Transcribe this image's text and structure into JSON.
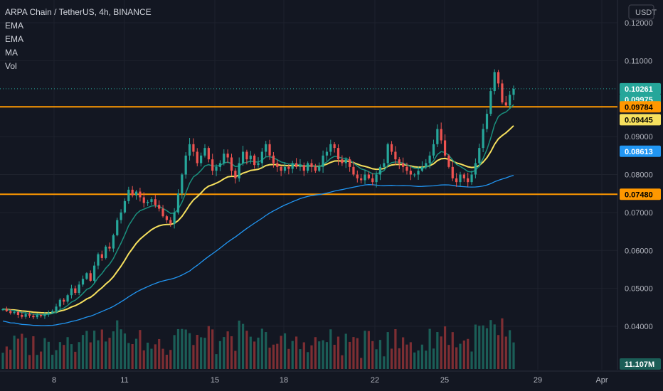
{
  "legend": {
    "title": "ARPA Chain / TetherUS, 4h, BINANCE",
    "indicators": [
      "EMA",
      "EMA",
      "MA",
      "Vol"
    ]
  },
  "currency": "USDT",
  "colors": {
    "background": "#131722",
    "grid": "#1e222d",
    "up": "#26a69a",
    "down": "#ef5350",
    "up_volume": "#1b5e57",
    "down_volume": "#7d2e33",
    "ema_fast": "#1a8f7d",
    "ema_slow": "#f6e05e",
    "ma": "#2196f3",
    "level": "#ff9800",
    "current_price": "#26a69a"
  },
  "chart_data": {
    "type": "candlestick",
    "title": "ARPA Chain / TetherUS, 4h, BINANCE",
    "interval": "4h",
    "x_tick_labels": [
      "8",
      "11",
      "15",
      "18",
      "22",
      "25",
      "29",
      "Apr"
    ],
    "y_tick_labels": [
      "0.12000",
      "0.11000",
      "0.09000",
      "0.08000",
      "0.07000",
      "0.06000",
      "0.05000",
      "0.04000"
    ],
    "y_range": [
      0.034,
      0.1225
    ],
    "grid": true,
    "horizontal_levels": [
      0.09784,
      0.0748
    ],
    "price_tags": [
      {
        "label": "0.10261",
        "value": 0.10261,
        "color": "#26a69a",
        "text_color": "#ffffff"
      },
      {
        "label": "0.09975",
        "value": 0.09975,
        "color": "#26a69a",
        "text_color": "#ffffff"
      },
      {
        "label": "0.09784",
        "value": 0.09784,
        "color": "#ff9800",
        "text_color": "#000000"
      },
      {
        "label": "0.09445",
        "value": 0.09445,
        "color": "#f6e05e",
        "text_color": "#000000"
      },
      {
        "label": "0.08613",
        "value": 0.08613,
        "color": "#2196f3",
        "text_color": "#ffffff"
      },
      {
        "label": "0.07480",
        "value": 0.0748,
        "color": "#ff9800",
        "text_color": "#000000"
      },
      {
        "label": "11.107M",
        "value": 0.0355,
        "color": "#1b5e57",
        "text_color": "#ffffff"
      }
    ],
    "closes": [
      0.0445,
      0.044,
      0.0435,
      0.0438,
      0.043,
      0.0425,
      0.0432,
      0.0428,
      0.0424,
      0.043,
      0.0427,
      0.0432,
      0.0436,
      0.044,
      0.0452,
      0.047,
      0.0465,
      0.0482,
      0.05,
      0.0488,
      0.051,
      0.0525,
      0.054,
      0.052,
      0.056,
      0.059,
      0.058,
      0.061,
      0.0605,
      0.064,
      0.068,
      0.07,
      0.073,
      0.076,
      0.0745,
      0.0755,
      0.074,
      0.0725,
      0.0728,
      0.0735,
      0.072,
      0.071,
      0.069,
      0.068,
      0.067,
      0.07,
      0.075,
      0.08,
      0.085,
      0.088,
      0.086,
      0.083,
      0.085,
      0.087,
      0.084,
      0.081,
      0.082,
      0.083,
      0.0855,
      0.0845,
      0.081,
      0.079,
      0.083,
      0.086,
      0.084,
      0.085,
      0.0825,
      0.083,
      0.086,
      0.088,
      0.085,
      0.083,
      0.082,
      0.081,
      0.082,
      0.0815,
      0.083,
      0.082,
      0.0825,
      0.081,
      0.083,
      0.082,
      0.081,
      0.082,
      0.085,
      0.086,
      0.088,
      0.087,
      0.084,
      0.083,
      0.084,
      0.082,
      0.08,
      0.079,
      0.0785,
      0.08,
      0.079,
      0.078,
      0.08,
      0.082,
      0.083,
      0.088,
      0.086,
      0.084,
      0.083,
      0.082,
      0.081,
      0.08,
      0.08,
      0.081,
      0.082,
      0.083,
      0.085,
      0.088,
      0.092,
      0.089,
      0.085,
      0.082,
      0.079,
      0.078,
      0.08,
      0.079,
      0.078,
      0.08,
      0.083,
      0.087,
      0.092,
      0.096,
      0.102,
      0.107,
      0.104,
      0.099,
      0.0982,
      0.101,
      0.1026
    ],
    "volume_axis_max": 44000000
  }
}
